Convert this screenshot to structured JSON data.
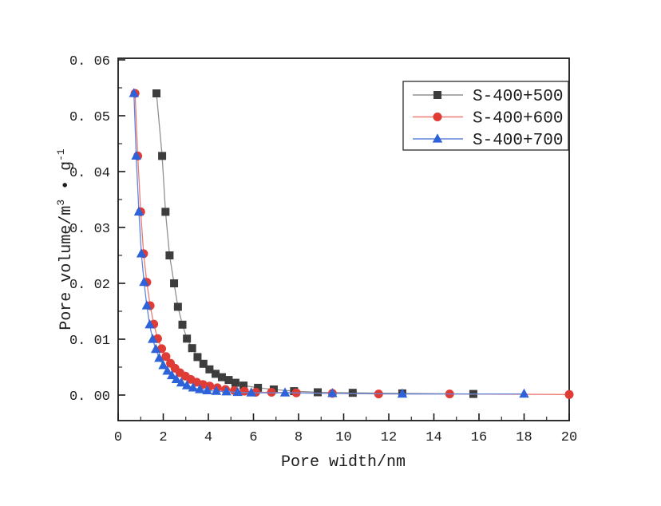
{
  "chart_data": {
    "type": "line",
    "title": "",
    "xlabel": "Pore width/nm",
    "ylabel": "Pore volume/m³•g⁻¹",
    "ylabel_parts": {
      "base1": "Pore volume/m",
      "sup1": "3",
      "base2": " • g",
      "sup2": "-1"
    },
    "xlim": [
      0,
      20
    ],
    "ylim": [
      0,
      0.06
    ],
    "grid": false,
    "legend_position": "top-right",
    "x_ticks": {
      "values": [
        0,
        2,
        4,
        6,
        8,
        10,
        12,
        14,
        16,
        18,
        20
      ],
      "labels": [
        "0",
        "2",
        "4",
        "6",
        "8",
        "10",
        "12",
        "14",
        "16",
        "18",
        "20"
      ],
      "minor_step": 1
    },
    "y_ticks": {
      "values": [
        0,
        0.01,
        0.02,
        0.03,
        0.04,
        0.05,
        0.06
      ],
      "labels": [
        "0. 00",
        "0. 01",
        "0. 02",
        "0. 03",
        "0. 04",
        "0. 05",
        "0. 06"
      ],
      "minor_step": 0.005
    },
    "series": [
      {
        "name": "S-400+500",
        "marker": "square",
        "marker_color": "#3d3d3d",
        "line_color": "#909090",
        "x": [
          1.7,
          1.95,
          2.1,
          2.28,
          2.48,
          2.65,
          2.85,
          3.05,
          3.28,
          3.52,
          3.78,
          4.05,
          4.32,
          4.6,
          4.9,
          5.2,
          5.56,
          6.2,
          6.9,
          7.8,
          8.85,
          10.4,
          12.6,
          15.75
        ],
        "y": [
          0.054,
          0.0428,
          0.0328,
          0.025,
          0.02,
          0.0158,
          0.0126,
          0.0101,
          0.0084,
          0.0068,
          0.0056,
          0.0046,
          0.0038,
          0.0032,
          0.0027,
          0.0022,
          0.0017,
          0.0013,
          0.001,
          0.0007,
          0.0005,
          0.0004,
          0.0003,
          0.0002
        ]
      },
      {
        "name": "S-400+600",
        "marker": "circle",
        "marker_color": "#e03c36",
        "line_color": "#ec7b76",
        "x": [
          0.75,
          0.87,
          1.0,
          1.13,
          1.27,
          1.42,
          1.58,
          1.75,
          1.93,
          2.12,
          2.32,
          2.52,
          2.74,
          2.98,
          3.22,
          3.48,
          3.76,
          4.06,
          4.4,
          4.76,
          5.15,
          5.6,
          6.1,
          6.8,
          7.9,
          9.5,
          11.55,
          14.7,
          20.0
        ],
        "y": [
          0.054,
          0.0428,
          0.0328,
          0.0253,
          0.0202,
          0.016,
          0.0127,
          0.0101,
          0.0083,
          0.0069,
          0.0057,
          0.0048,
          0.004,
          0.0034,
          0.0028,
          0.0023,
          0.0019,
          0.0016,
          0.0013,
          0.001,
          0.0008,
          0.0007,
          0.0005,
          0.0005,
          0.0004,
          0.0003,
          0.0002,
          0.0002,
          0.0001
        ]
      },
      {
        "name": "S-400+700",
        "marker": "triangle",
        "marker_color": "#2d62d9",
        "line_color": "#5f86dc",
        "x": [
          0.7,
          0.8,
          0.92,
          1.03,
          1.15,
          1.27,
          1.4,
          1.53,
          1.67,
          1.82,
          2.0,
          2.18,
          2.38,
          2.58,
          2.8,
          3.05,
          3.32,
          3.62,
          3.95,
          4.35,
          4.8,
          5.3,
          5.9,
          7.4,
          9.5,
          12.6,
          18.0
        ],
        "y": [
          0.054,
          0.0428,
          0.0328,
          0.0253,
          0.0202,
          0.016,
          0.0126,
          0.01,
          0.0082,
          0.0066,
          0.0053,
          0.0043,
          0.0035,
          0.0028,
          0.0022,
          0.0017,
          0.0013,
          0.001,
          0.0008,
          0.0007,
          0.0006,
          0.0005,
          0.0004,
          0.0004,
          0.0003,
          0.0002,
          0.0002
        ]
      }
    ]
  },
  "legend": {
    "entries": [
      "S-400+500",
      "S-400+600",
      "S-400+700"
    ]
  },
  "colors": {
    "axis": "#1a1a1a",
    "text": "#1c1c1c",
    "background": "#ffffff",
    "series_black": "#3d3d3d",
    "series_red": "#e03c36",
    "series_blue": "#2d62d9"
  }
}
